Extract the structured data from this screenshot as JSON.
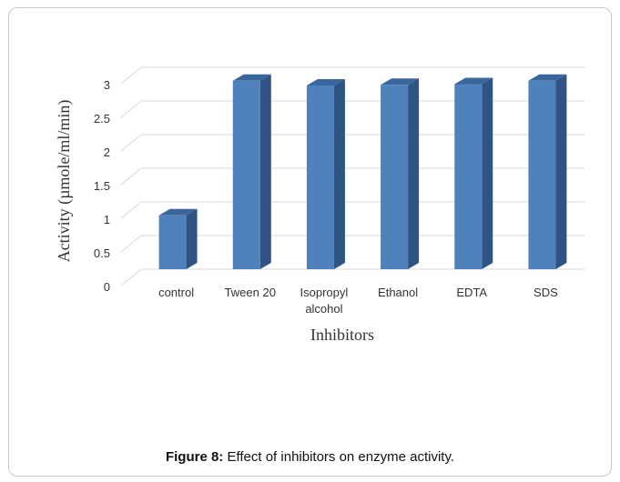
{
  "chart_data": {
    "type": "bar",
    "categories": [
      [
        "control"
      ],
      [
        "Tween 20"
      ],
      [
        "Isopropyl",
        "alcohol"
      ],
      [
        "Ethanol"
      ],
      [
        "EDTA"
      ],
      [
        "SDS"
      ]
    ],
    "values": [
      0.8,
      2.8,
      2.73,
      2.74,
      2.75,
      2.8
    ],
    "xlabel": "Inhibitors",
    "ylabel": "Activity (µmole/ml/min)",
    "ylim": [
      0,
      3
    ],
    "yticks": [
      "0",
      "0.5",
      "1",
      "1.5",
      "2",
      "2.5",
      "3"
    ],
    "grid": true,
    "bar_color": "#4f81bd",
    "bar_side_color": "#2f5483",
    "bar_top_color": "#3b669d"
  },
  "caption": {
    "label": "Figure 8:",
    "text": " Effect of inhibitors on enzyme activity."
  }
}
